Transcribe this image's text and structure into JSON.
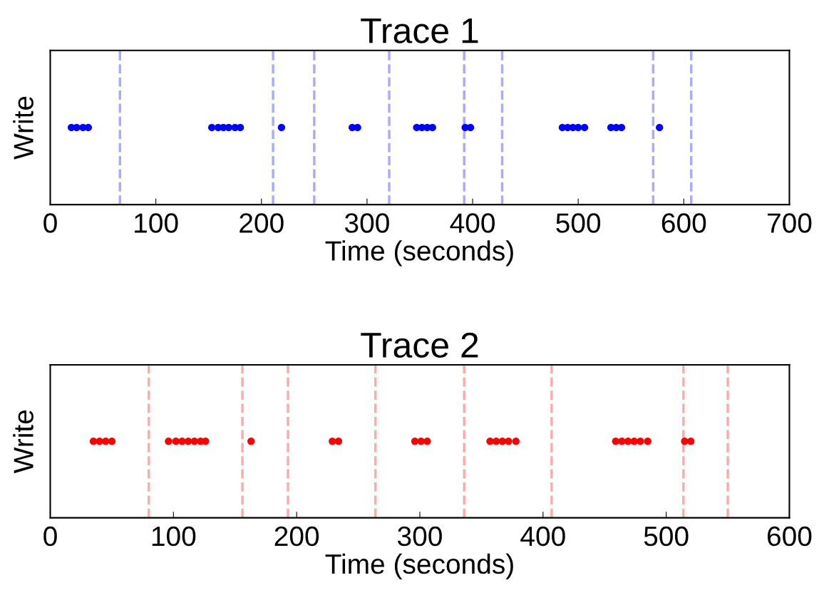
{
  "chart_data": [
    {
      "type": "scatter",
      "orientation": "horizontal",
      "title": "Trace 1",
      "xlabel": "Time (seconds)",
      "ylabel": "Write",
      "marker": "circle",
      "xlim": [
        0,
        700
      ],
      "xticks": [
        0,
        100,
        200,
        300,
        400,
        500,
        600,
        700
      ],
      "categories": [
        null
      ],
      "series": [
        {
          "color": "#0000ff",
          "x": [
            null,
            null,
            null,
            null,
            null,
            null,
            null,
            null,
            null,
            null,
            null,
            null,
            null,
            null,
            null,
            null,
            null,
            null,
            null,
            null,
            null,
            null,
            null,
            null,
            null,
            null,
            null,
            null
          ],
          "values": [
            20,
            25,
            31,
            36,
            153,
            159,
            164,
            169,
            175,
            180,
            219,
            286,
            291,
            347,
            352,
            357,
            362,
            393,
            398,
            485,
            490,
            495,
            500,
            506,
            531,
            536,
            541,
            577
          ]
        }
      ],
      "ref_lines": [
        {
          "axis": "x",
          "value": 66,
          "color": "#aaaaff",
          "line_style": "dashed"
        },
        {
          "axis": "x",
          "value": 211,
          "color": "#aaaaff",
          "line_style": "dashed"
        },
        {
          "axis": "x",
          "value": 250,
          "color": "#aaaaff",
          "line_style": "dashed"
        },
        {
          "axis": "x",
          "value": 321,
          "color": "#aaaaff",
          "line_style": "dashed"
        },
        {
          "axis": "x",
          "value": 392,
          "color": "#aaaaff",
          "line_style": "dashed"
        },
        {
          "axis": "x",
          "value": 428,
          "color": "#aaaaff",
          "line_style": "dashed"
        },
        {
          "axis": "x",
          "value": 571,
          "color": "#aaaaff",
          "line_style": "dashed"
        },
        {
          "axis": "x",
          "value": 607,
          "color": "#aaaaff",
          "line_style": "dashed"
        }
      ]
    },
    {
      "type": "scatter",
      "orientation": "horizontal",
      "title": "Trace 2",
      "xlabel": "Time (seconds)",
      "ylabel": "Write",
      "marker": "circle",
      "xlim": [
        0,
        600
      ],
      "xticks": [
        0,
        100,
        200,
        300,
        400,
        500,
        600
      ],
      "categories": [
        null
      ],
      "series": [
        {
          "color": "#ff0000",
          "x": [
            null,
            null,
            null,
            null,
            null,
            null,
            null,
            null,
            null,
            null,
            null,
            null,
            null,
            null,
            null,
            null,
            null,
            null,
            null,
            null,
            null,
            null,
            null,
            null,
            null,
            null,
            null,
            null,
            null,
            null
          ],
          "values": [
            35,
            40,
            45,
            50,
            96,
            102,
            107,
            112,
            117,
            122,
            126,
            163,
            229,
            234,
            296,
            301,
            306,
            357,
            362,
            367,
            372,
            378,
            459,
            464,
            469,
            474,
            479,
            485,
            515,
            520
          ]
        }
      ],
      "ref_lines": [
        {
          "axis": "x",
          "value": 80,
          "color": "#ffaaaa",
          "line_style": "dashed"
        },
        {
          "axis": "x",
          "value": 156,
          "color": "#ffaaaa",
          "line_style": "dashed"
        },
        {
          "axis": "x",
          "value": 193,
          "color": "#ffaaaa",
          "line_style": "dashed"
        },
        {
          "axis": "x",
          "value": 264,
          "color": "#ffaaaa",
          "line_style": "dashed"
        },
        {
          "axis": "x",
          "value": 336,
          "color": "#ffaaaa",
          "line_style": "dashed"
        },
        {
          "axis": "x",
          "value": 407,
          "color": "#ffaaaa",
          "line_style": "dashed"
        },
        {
          "axis": "x",
          "value": 514,
          "color": "#ffaaaa",
          "line_style": "dashed"
        },
        {
          "axis": "x",
          "value": 550,
          "color": "#ffaaaa",
          "line_style": "dashed"
        }
      ]
    }
  ]
}
